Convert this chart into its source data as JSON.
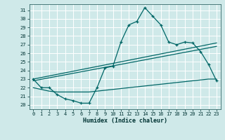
{
  "xlabel": "Humidex (Indice chaleur)",
  "ylabel": "",
  "bg_color": "#cfe9e9",
  "grid_color": "#b8d8d8",
  "line_color": "#006666",
  "xlim": [
    -0.5,
    23.5
  ],
  "ylim": [
    19.5,
    31.7
  ],
  "xticks": [
    0,
    1,
    2,
    3,
    4,
    5,
    6,
    7,
    8,
    9,
    10,
    11,
    12,
    13,
    14,
    15,
    16,
    17,
    18,
    19,
    20,
    21,
    22,
    23
  ],
  "yticks": [
    20,
    21,
    22,
    23,
    24,
    25,
    26,
    27,
    28,
    29,
    30,
    31
  ],
  "curve_main_x": [
    0,
    1,
    2,
    3,
    4,
    5,
    6,
    7,
    8,
    9,
    10,
    11,
    12,
    13,
    14,
    15,
    16,
    17,
    18,
    19,
    20,
    21,
    22,
    23
  ],
  "curve_main_y": [
    23.0,
    22.0,
    22.0,
    21.2,
    20.7,
    20.5,
    20.2,
    20.2,
    22.0,
    24.3,
    24.5,
    27.3,
    29.3,
    29.7,
    31.3,
    30.3,
    29.3,
    27.3,
    27.0,
    27.3,
    27.2,
    26.2,
    24.7,
    22.8
  ],
  "curve_line1_x": [
    0,
    23
  ],
  "curve_line1_y": [
    23.0,
    27.2
  ],
  "curve_line2_x": [
    0,
    23
  ],
  "curve_line2_y": [
    22.8,
    26.8
  ],
  "curve_flat_x": [
    0,
    1,
    2,
    3,
    4,
    5,
    6,
    7,
    8,
    9,
    10,
    11,
    12,
    13,
    14,
    15,
    16,
    17,
    18,
    19,
    20,
    21,
    22,
    23
  ],
  "curve_flat_y": [
    22.0,
    21.8,
    21.6,
    21.5,
    21.5,
    21.5,
    21.5,
    21.5,
    21.6,
    21.7,
    21.8,
    21.9,
    22.0,
    22.1,
    22.2,
    22.3,
    22.4,
    22.5,
    22.6,
    22.7,
    22.8,
    22.9,
    23.0,
    23.0
  ]
}
